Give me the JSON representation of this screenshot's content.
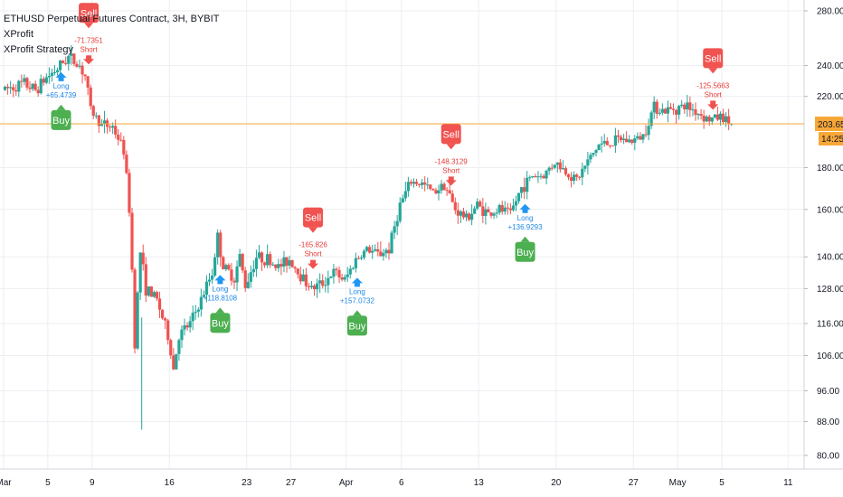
{
  "legend": {
    "symbol": "ETHUSD Perpetual Futures Contract, 3H, BYBIT",
    "indicator": "XProfit",
    "strategy": "XProfit Strategy"
  },
  "chart_data": {
    "type": "candlestick",
    "y_scale": "log",
    "ylim": [
      76,
      300
    ],
    "y_ticks": [
      {
        "label": "280.00",
        "v": 280
      },
      {
        "label": "240.00",
        "v": 240
      },
      {
        "label": "220.00",
        "v": 220
      },
      {
        "label": "180.00",
        "v": 180
      },
      {
        "label": "160.00",
        "v": 160
      },
      {
        "label": "140.00",
        "v": 140
      },
      {
        "label": "128.00",
        "v": 128
      },
      {
        "label": "116.00",
        "v": 116
      },
      {
        "label": "106.00",
        "v": 106
      },
      {
        "label": "96.00",
        "v": 96
      },
      {
        "label": "88.00",
        "v": 88
      },
      {
        "label": "80.00",
        "v": 80
      }
    ],
    "x_ticks": [
      {
        "label": "Mar",
        "d": 0
      },
      {
        "label": "5",
        "d": 4
      },
      {
        "label": "9",
        "d": 8
      },
      {
        "label": "16",
        "d": 15
      },
      {
        "label": "23",
        "d": 22
      },
      {
        "label": "27",
        "d": 26
      },
      {
        "label": "Apr",
        "d": 31
      },
      {
        "label": "6",
        "d": 36
      },
      {
        "label": "13",
        "d": 43
      },
      {
        "label": "20",
        "d": 50
      },
      {
        "label": "27",
        "d": 57
      },
      {
        "label": "May",
        "d": 61
      },
      {
        "label": "5",
        "d": 65
      },
      {
        "label": "11",
        "d": 71
      }
    ],
    "x_range_days": [
      0,
      76
    ],
    "price_line": 203.65,
    "price_label": "203.65",
    "countdown_label": "14:25",
    "colors": {
      "up": "#26a69a",
      "down": "#ef5350",
      "buy": "#4caf50",
      "sell": "#f05350",
      "long": "#2196f3",
      "price_line": "#f7a738"
    },
    "candles_path": [
      [
        0,
        224
      ],
      [
        1,
        226
      ],
      [
        2,
        228
      ],
      [
        3,
        224
      ],
      [
        4,
        232
      ],
      [
        5,
        238
      ],
      [
        6,
        246
      ],
      [
        7,
        240
      ],
      [
        7.5,
        233
      ],
      [
        8,
        212
      ],
      [
        9,
        203
      ],
      [
        10,
        202
      ],
      [
        11,
        189
      ],
      [
        11.5,
        160
      ],
      [
        12,
        110
      ],
      [
        12.5,
        142
      ],
      [
        13,
        128
      ],
      [
        14,
        124
      ],
      [
        15,
        112
      ],
      [
        15.5,
        102
      ],
      [
        16,
        112
      ],
      [
        17,
        116
      ],
      [
        18,
        124
      ],
      [
        19,
        134
      ],
      [
        19.5,
        148
      ],
      [
        20,
        136
      ],
      [
        21,
        132
      ],
      [
        21.5,
        140
      ],
      [
        22,
        129
      ],
      [
        23,
        140
      ],
      [
        24,
        139
      ],
      [
        25,
        136
      ],
      [
        26,
        139
      ],
      [
        27,
        133
      ],
      [
        28,
        128
      ],
      [
        29,
        130
      ],
      [
        30,
        134
      ],
      [
        31,
        131
      ],
      [
        32,
        139
      ],
      [
        33,
        143
      ],
      [
        34,
        141
      ],
      [
        35,
        143
      ],
      [
        36,
        162
      ],
      [
        37,
        173
      ],
      [
        38,
        172
      ],
      [
        39,
        168
      ],
      [
        40,
        172
      ],
      [
        41,
        160
      ],
      [
        42,
        156
      ],
      [
        43,
        162
      ],
      [
        44,
        158
      ],
      [
        45,
        160
      ],
      [
        46,
        158
      ],
      [
        47,
        170
      ],
      [
        48,
        176
      ],
      [
        49,
        176
      ],
      [
        50,
        183
      ],
      [
        51,
        178
      ],
      [
        52,
        174
      ],
      [
        53,
        183
      ],
      [
        54,
        192
      ],
      [
        55,
        193
      ],
      [
        56,
        195
      ],
      [
        57,
        194
      ],
      [
        58,
        197
      ],
      [
        59,
        214
      ],
      [
        60,
        211
      ],
      [
        61,
        213
      ],
      [
        62,
        214
      ],
      [
        63,
        210
      ],
      [
        64,
        206
      ],
      [
        65,
        208
      ],
      [
        66,
        203.65
      ]
    ],
    "signals": [
      {
        "type": "sell",
        "side": "Short",
        "value": "-71.7351",
        "d": 7.7,
        "price": 242
      },
      {
        "type": "buy",
        "side": "Long",
        "value": "+65.4739",
        "d": 5.2,
        "price": 232
      },
      {
        "type": "buy",
        "side": "Long",
        "value": "+118.8108",
        "d": 19.6,
        "price": 131
      },
      {
        "type": "sell",
        "side": "Short",
        "value": "-165.826",
        "d": 28.0,
        "price": 136
      },
      {
        "type": "buy",
        "side": "Long",
        "value": "+157.0732",
        "d": 32.0,
        "price": 130
      },
      {
        "type": "sell",
        "side": "Short",
        "value": "-148.3129",
        "d": 40.5,
        "price": 172
      },
      {
        "type": "buy",
        "side": "Long",
        "value": "+136.9293",
        "d": 47.2,
        "price": 160
      },
      {
        "type": "sell",
        "side": "Short",
        "value": "-125.5663",
        "d": 64.2,
        "price": 213
      }
    ]
  }
}
